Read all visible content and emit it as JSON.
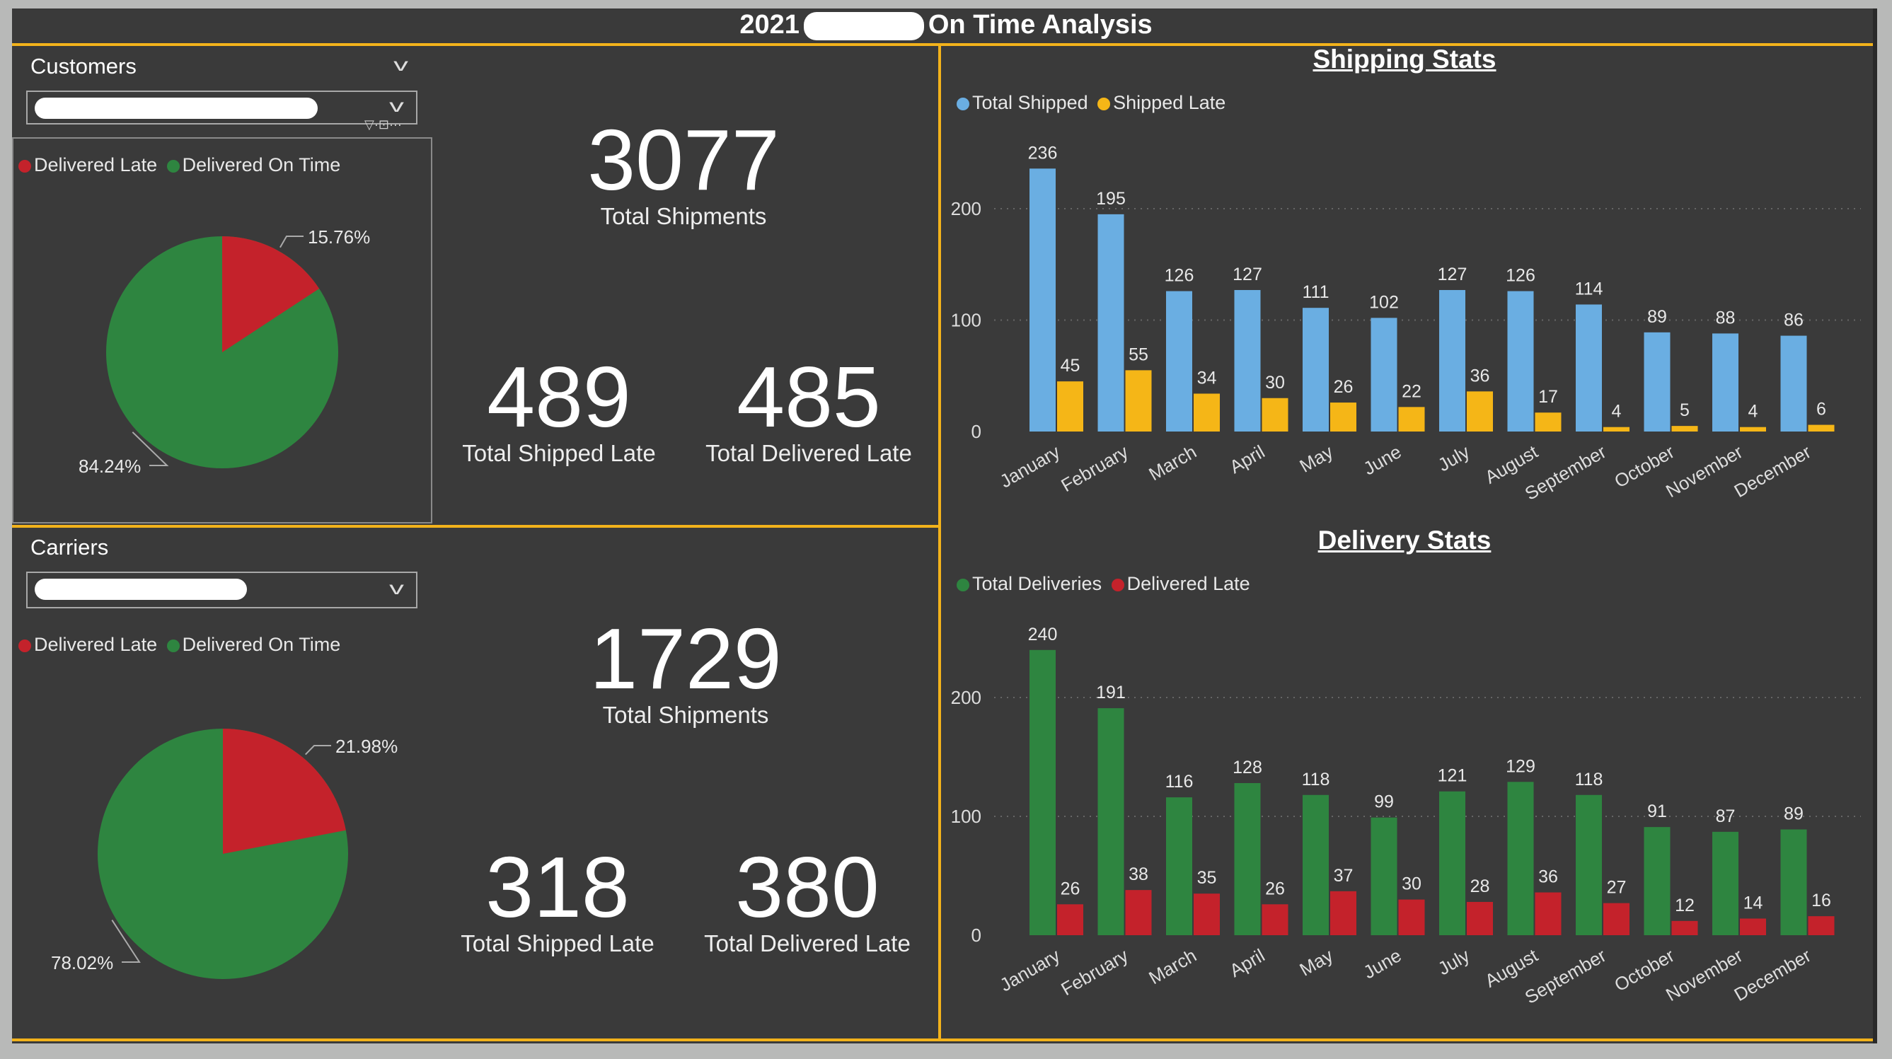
{
  "header": {
    "year": "2021",
    "title_suffix": "On Time Analysis"
  },
  "customers": {
    "label": "Customers",
    "legend": [
      {
        "label": "Delivered Late",
        "color": "#c4222b"
      },
      {
        "label": "Delivered On Time",
        "color": "#2e8540"
      }
    ],
    "pie": {
      "late_pct": 15.76,
      "on_time_pct": 84.24,
      "late_label": "15.76%",
      "on_time_label": "84.24%"
    },
    "kpis": {
      "total_shipments": "3077",
      "total_shipments_label": "Total Shipments",
      "shipped_late": "489",
      "shipped_late_label": "Total Shipped Late",
      "delivered_late": "485",
      "delivered_late_label": "Total Delivered Late"
    }
  },
  "carriers": {
    "label": "Carriers",
    "legend": [
      {
        "label": "Delivered Late",
        "color": "#c4222b"
      },
      {
        "label": "Delivered On Time",
        "color": "#2e8540"
      }
    ],
    "pie": {
      "late_pct": 21.98,
      "on_time_pct": 78.02,
      "late_label": "21.98%",
      "on_time_label": "78.02%"
    },
    "kpis": {
      "total_shipments": "1729",
      "total_shipments_label": "Total Shipments",
      "shipped_late": "318",
      "shipped_late_label": "Total Shipped Late",
      "delivered_late": "380",
      "delivered_late_label": "Total Delivered Late"
    }
  },
  "chart_data": [
    {
      "type": "bar",
      "title": "Shipping Stats",
      "categories": [
        "January",
        "February",
        "March",
        "April",
        "May",
        "June",
        "July",
        "August",
        "September",
        "October",
        "November",
        "December"
      ],
      "series": [
        {
          "name": "Total Shipped",
          "color": "#6aaee2",
          "values": [
            236,
            195,
            126,
            127,
            111,
            102,
            127,
            126,
            114,
            89,
            88,
            86
          ]
        },
        {
          "name": "Shipped Late",
          "color": "#f5b617",
          "values": [
            45,
            55,
            34,
            30,
            26,
            22,
            36,
            17,
            4,
            5,
            4,
            6
          ]
        }
      ],
      "yticks": [
        0,
        100,
        200
      ],
      "ylim": [
        0,
        250
      ],
      "grid": true,
      "legend": "top-left"
    },
    {
      "type": "bar",
      "title": "Delivery Stats",
      "categories": [
        "January",
        "February",
        "March",
        "April",
        "May",
        "June",
        "July",
        "August",
        "September",
        "October",
        "November",
        "December"
      ],
      "series": [
        {
          "name": "Total Deliveries",
          "color": "#2e8540",
          "values": [
            240,
            191,
            116,
            128,
            118,
            99,
            121,
            129,
            118,
            91,
            87,
            89
          ]
        },
        {
          "name": "Delivered Late",
          "color": "#c4222b",
          "values": [
            26,
            38,
            35,
            26,
            37,
            30,
            28,
            36,
            27,
            12,
            14,
            16
          ]
        }
      ],
      "yticks": [
        0,
        100,
        200
      ],
      "ylim": [
        0,
        250
      ],
      "grid": true,
      "legend": "top-left"
    }
  ]
}
